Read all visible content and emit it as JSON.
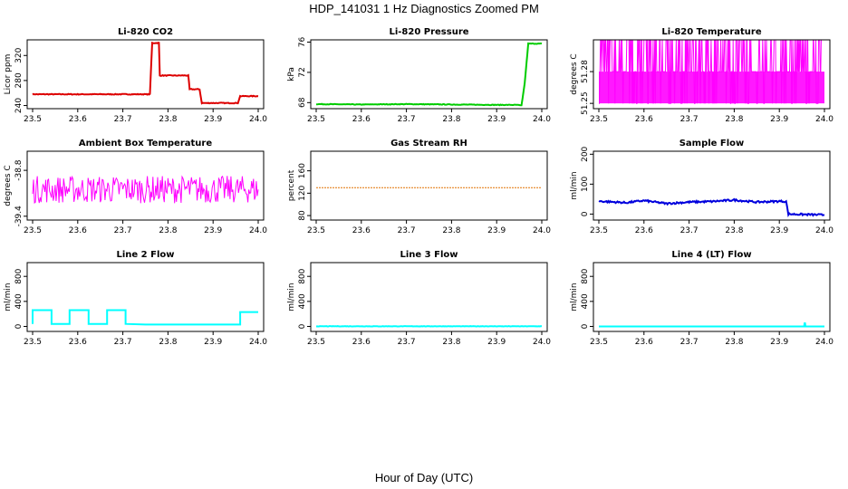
{
  "figure": {
    "title": "HDP_141031  1 Hz Diagnostics Zoomed PM",
    "xlabel": "Hour of Day (UTC)"
  },
  "chart_data": [
    {
      "type": "line",
      "title": "Li-820 CO2",
      "ylabel": "Licor ppm",
      "color": "#dd0000",
      "xlim": [
        23.5,
        24.0
      ],
      "ylim": [
        235,
        345
      ],
      "xticks": [
        "23.5",
        "23.6",
        "23.7",
        "23.8",
        "23.9",
        "24.0"
      ],
      "yticks": [
        240,
        280,
        320
      ],
      "series": [
        {
          "name": "CO2",
          "x": [
            23.5,
            23.76,
            23.765,
            23.78,
            23.782,
            23.845,
            23.848,
            23.87,
            23.875,
            23.955,
            23.96,
            24.0
          ],
          "y": [
            258,
            258,
            340,
            340,
            288,
            288,
            266,
            266,
            244,
            244,
            255,
            255
          ]
        }
      ],
      "noise": 0.6
    },
    {
      "type": "line",
      "title": "Li-820 Pressure",
      "ylabel": "kPa",
      "color": "#00cc00",
      "xlim": [
        23.5,
        24.0
      ],
      "ylim": [
        67.2,
        76.3
      ],
      "xticks": [
        "23.5",
        "23.6",
        "23.7",
        "23.8",
        "23.9",
        "24.0"
      ],
      "yticks": [
        68,
        72,
        76
      ],
      "series": [
        {
          "name": "Pressure",
          "x": [
            23.5,
            23.6,
            23.7,
            23.8,
            23.9,
            23.945,
            23.955,
            23.962,
            23.97,
            24.0
          ],
          "y": [
            67.8,
            67.75,
            67.8,
            67.75,
            67.7,
            67.7,
            67.6,
            70.5,
            75.8,
            75.8
          ]
        }
      ],
      "noise": 0.04
    },
    {
      "type": "line",
      "title": "Li-820 Temperature",
      "ylabel": "degrees C",
      "color": "#ff00ff",
      "xlim": [
        23.5,
        24.0
      ],
      "ylim": [
        51.245,
        51.31
      ],
      "xticks": [
        "23.5",
        "23.6",
        "23.7",
        "23.8",
        "23.9",
        "24.0"
      ],
      "yticks": [
        51.25,
        51.28
      ],
      "yticklabels": [
        "51.25",
        "51.28"
      ],
      "extra_ytick_labels": [
        "51.28"
      ],
      "series": [
        {
          "name": "Temperature",
          "levels": [
            51.25,
            51.28,
            51.31
          ],
          "x": [
            23.5,
            24.0
          ]
        }
      ],
      "noise": 0
    },
    {
      "type": "line",
      "title": "Ambient Box Temperature",
      "ylabel": "degrees C",
      "color": "#ff00ff",
      "xlim": [
        23.5,
        24.0
      ],
      "ylim": [
        -39.45,
        -38.55
      ],
      "xticks": [
        "23.5",
        "23.6",
        "23.7",
        "23.8",
        "23.9",
        "24.0"
      ],
      "yticks": [
        -39.4,
        -38.8
      ],
      "series": [
        {
          "name": "Box Temp",
          "x": [
            23.5,
            24.0
          ],
          "y": [
            -39.05,
            -39.05
          ]
        }
      ],
      "noise": 0.18
    },
    {
      "type": "line",
      "title": "Gas Stream RH",
      "ylabel": "percent",
      "color": "#e07000",
      "xlim": [
        23.5,
        24.0
      ],
      "ylim": [
        72,
        195
      ],
      "xticks": [
        "23.5",
        "23.6",
        "23.7",
        "23.8",
        "23.9",
        "24.0"
      ],
      "yticks": [
        80,
        120,
        160
      ],
      "series": [
        {
          "name": "RH",
          "x": [
            23.5,
            24.0
          ],
          "y": [
            130,
            130
          ]
        }
      ],
      "noise": 0
    },
    {
      "type": "line",
      "title": "Sample Flow",
      "ylabel": "ml/min",
      "color": "#0000dd",
      "xlim": [
        23.5,
        24.0
      ],
      "ylim": [
        -20,
        210
      ],
      "xticks": [
        "23.5",
        "23.6",
        "23.7",
        "23.8",
        "23.9",
        "24.0"
      ],
      "yticks": [
        0,
        100,
        200
      ],
      "series": [
        {
          "name": "Sample Flow",
          "x": [
            23.5,
            23.56,
            23.6,
            23.65,
            23.7,
            23.75,
            23.8,
            23.85,
            23.9,
            23.915,
            23.92,
            24.0
          ],
          "y": [
            43,
            38,
            45,
            35,
            40,
            42,
            47,
            40,
            43,
            42,
            0,
            -3
          ]
        }
      ],
      "noise": 3
    },
    {
      "type": "line",
      "title": "Line 2 Flow",
      "ylabel": "ml/min",
      "color": "#00ffff",
      "xlim": [
        23.5,
        24.0
      ],
      "ylim": [
        -80,
        1020
      ],
      "xticks": [
        "23.5",
        "23.6",
        "23.7",
        "23.8",
        "23.9",
        "24.0"
      ],
      "yticks": [
        0,
        400,
        800
      ],
      "series": [
        {
          "name": "Line 2",
          "x": [
            23.5,
            23.5,
            23.542,
            23.542,
            23.582,
            23.582,
            23.624,
            23.624,
            23.665,
            23.665,
            23.706,
            23.706,
            23.75,
            23.96,
            23.96,
            24.0
          ],
          "y": [
            40,
            260,
            260,
            40,
            40,
            260,
            260,
            40,
            40,
            260,
            260,
            40,
            30,
            30,
            230,
            230
          ]
        }
      ],
      "noise": 0
    },
    {
      "type": "line",
      "title": "Line 3 Flow",
      "ylabel": "ml/min",
      "color": "#00ffff",
      "xlim": [
        23.5,
        24.0
      ],
      "ylim": [
        -80,
        1020
      ],
      "xticks": [
        "23.5",
        "23.6",
        "23.7",
        "23.8",
        "23.9",
        "24.0"
      ],
      "yticks": [
        0,
        400,
        800
      ],
      "series": [
        {
          "name": "Line 3",
          "x": [
            23.5,
            24.0
          ],
          "y": [
            2,
            2
          ]
        }
      ],
      "noise": 3
    },
    {
      "type": "line",
      "title": "Line 4 (LT) Flow",
      "ylabel": "ml/min",
      "color": "#00ffff",
      "xlim": [
        23.5,
        24.0
      ],
      "ylim": [
        -80,
        1020
      ],
      "xticks": [
        "23.5",
        "23.6",
        "23.7",
        "23.8",
        "23.9",
        "24.0"
      ],
      "yticks": [
        0,
        400,
        800
      ],
      "series": [
        {
          "name": "Line 4",
          "x": [
            23.5,
            23.955,
            23.956,
            23.957,
            23.958,
            24.0
          ],
          "y": [
            0,
            0,
            50,
            50,
            0,
            0
          ]
        }
      ],
      "noise": 0
    }
  ]
}
